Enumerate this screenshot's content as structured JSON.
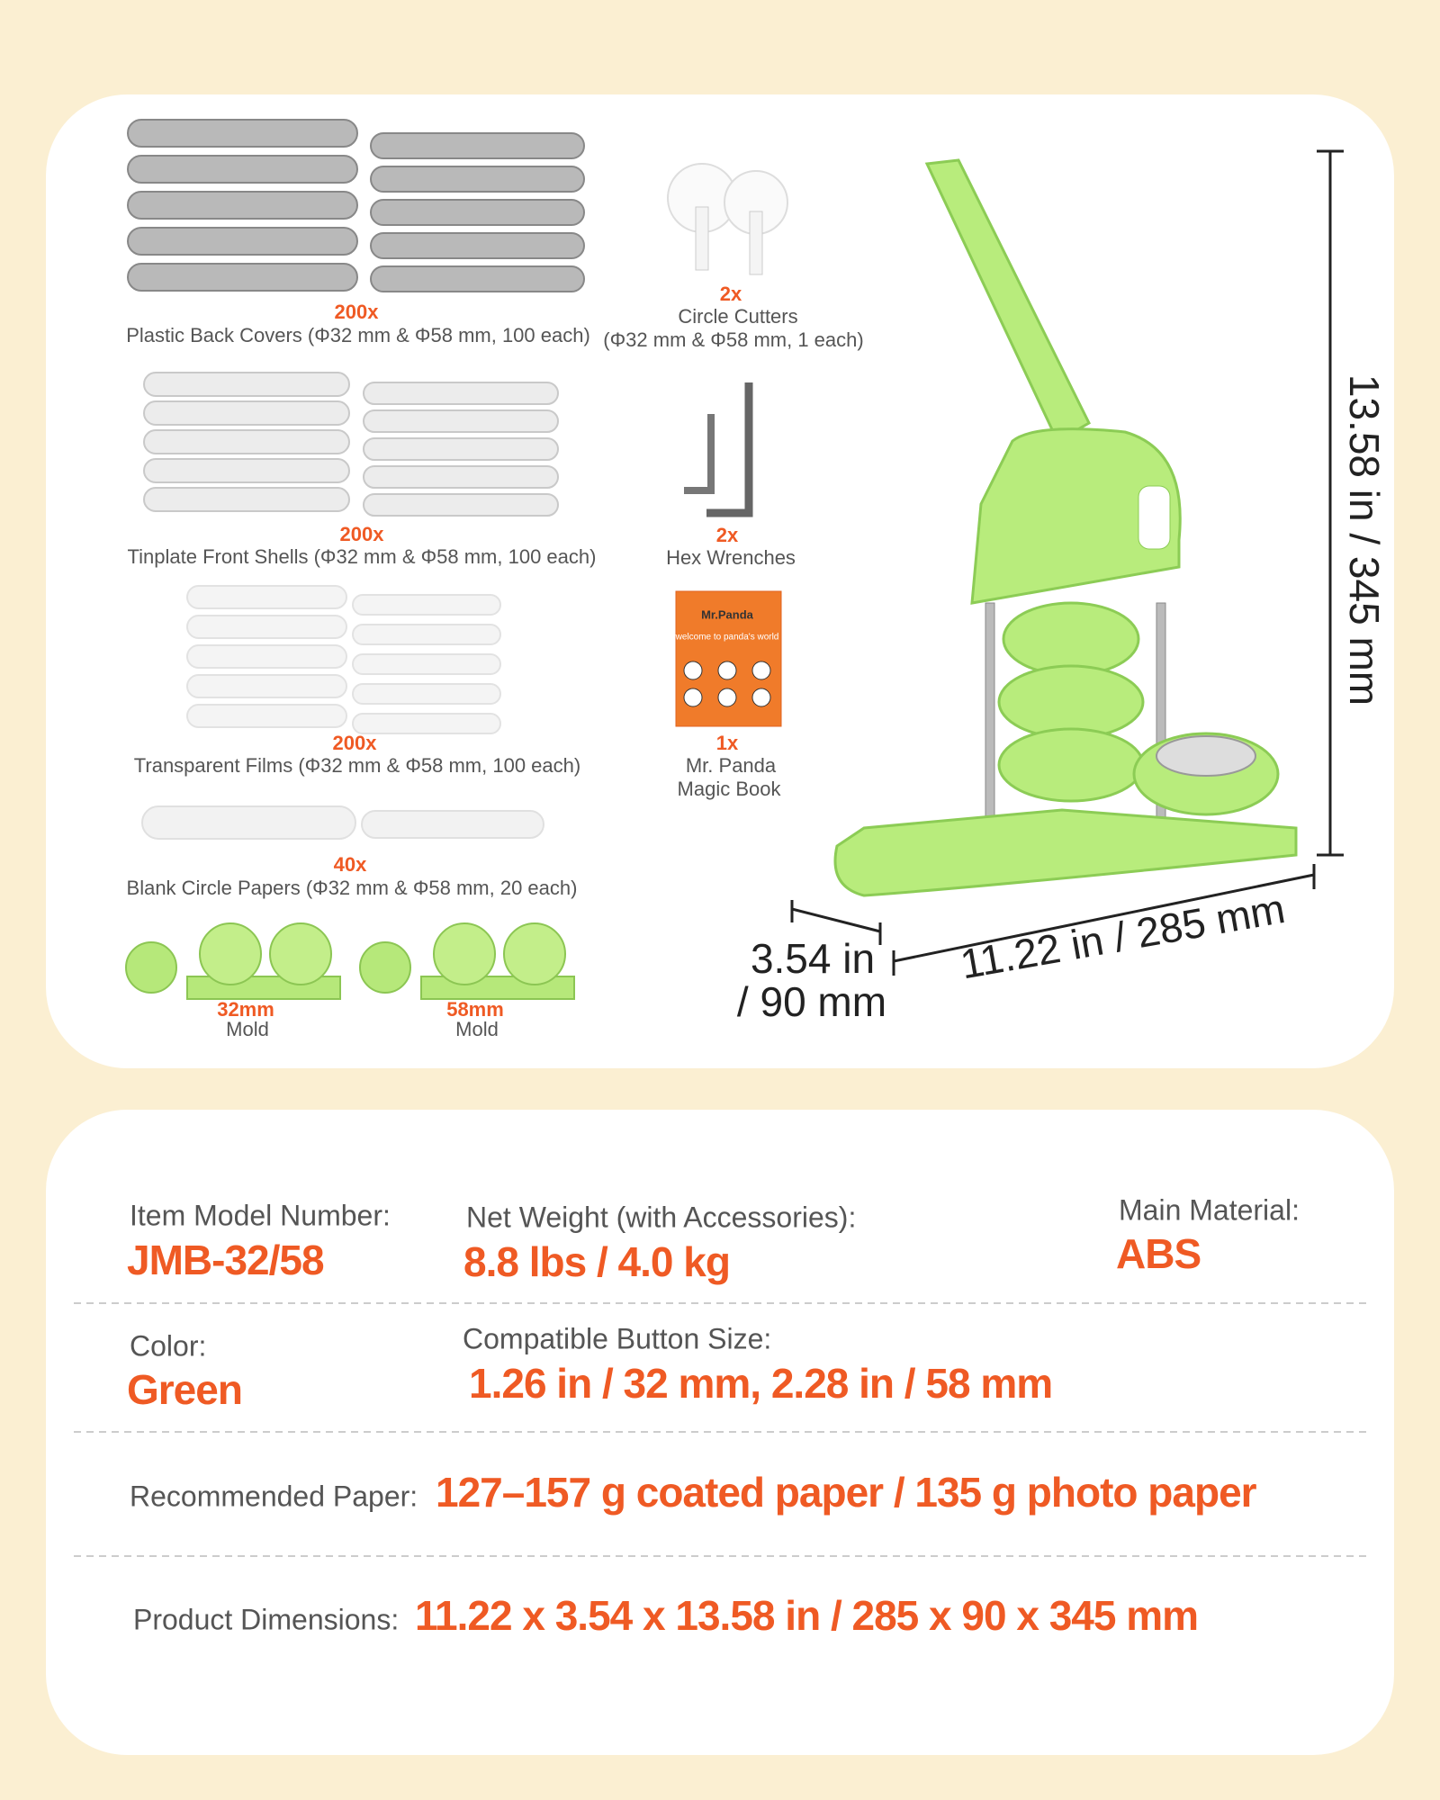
{
  "accessories": [
    {
      "qty": "200x",
      "label": "Plastic Back Covers (Φ32 mm & Φ58 mm, 100 each)"
    },
    {
      "qty": "2x",
      "label": "Circle Cutters",
      "detail": "(Φ32 mm & Φ58 mm, 1 each)"
    },
    {
      "qty": "200x",
      "label": "Tinplate Front Shells (Φ32 mm & Φ58 mm, 100 each)"
    },
    {
      "qty": "2x",
      "label": "Hex Wrenches"
    },
    {
      "qty": "200x",
      "label": "Transparent Films (Φ32 mm & Φ58 mm, 100 each)"
    },
    {
      "qty": "1x",
      "label": "Mr. Panda",
      "detail": "Magic Book"
    },
    {
      "qty": "40x",
      "label": "Blank Circle Papers (Φ32 mm & Φ58 mm, 20 each)"
    }
  ],
  "book_cover": {
    "title": "Mr.Panda",
    "subtitle": "welcome to panda's world"
  },
  "molds": [
    {
      "size": "32mm",
      "label": "Mold"
    },
    {
      "size": "58mm",
      "label": "Mold"
    }
  ],
  "dimensions": {
    "height": "13.58 in / 345 mm",
    "length": "11.22 in / 285 mm",
    "width_in": "3.54 in",
    "width_mm": "/ 90 mm"
  },
  "specs": {
    "model": {
      "label": "Item Model Number:",
      "value": "JMB-32/58"
    },
    "weight": {
      "label": "Net Weight (with Accessories):",
      "value": "8.8 lbs / 4.0 kg"
    },
    "material": {
      "label": "Main Material:",
      "value": "ABS"
    },
    "color": {
      "label": "Color:",
      "value": "Green"
    },
    "button_size": {
      "label": "Compatible Button Size:",
      "value": "1.26 in / 32 mm, 2.28 in / 58 mm"
    },
    "paper": {
      "label": "Recommended Paper:",
      "value": "127–157 g coated paper / 135 g photo paper"
    },
    "product_dimensions": {
      "label": "Product Dimensions:",
      "value": "11.22 x 3.54 x 13.58 in / 285 x 90 x 345 mm"
    }
  }
}
